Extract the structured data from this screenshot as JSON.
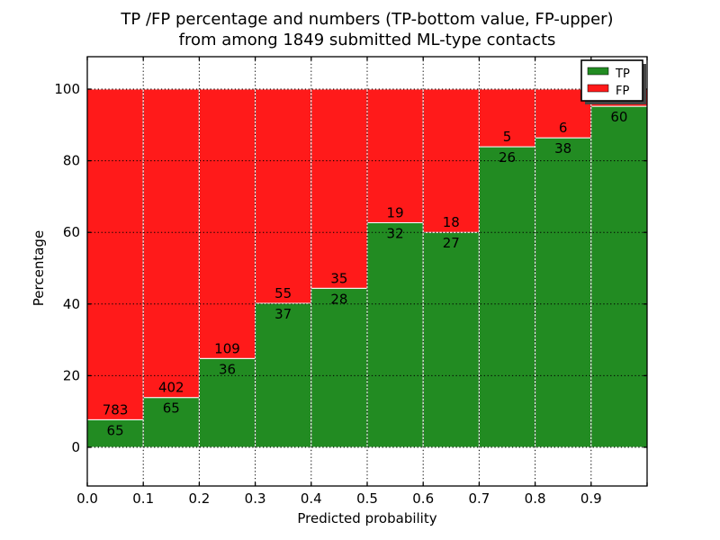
{
  "title": {
    "line1": "TP /FP percentage and numbers (TP-bottom value, FP-upper)",
    "line2": "from among 1849 submitted ML-type contacts"
  },
  "axes": {
    "xlabel": "Predicted probability",
    "ylabel": "Percentage",
    "xticks": [
      "0.0",
      "0.1",
      "0.2",
      "0.3",
      "0.4",
      "0.5",
      "0.6",
      "0.7",
      "0.8",
      "0.9"
    ],
    "yticks": [
      "0",
      "20",
      "40",
      "60",
      "80",
      "100"
    ],
    "ytick_values": [
      0,
      20,
      40,
      60,
      80,
      100
    ]
  },
  "legend": {
    "position": "upper-right",
    "items": [
      {
        "label": "TP",
        "color": "#228b22"
      },
      {
        "label": "FP",
        "color": "#ff1a1a"
      }
    ]
  },
  "colors": {
    "tp": "#228b22",
    "fp": "#ff1a1a",
    "grid": "#000000",
    "frame": "#000000",
    "background": "#ffffff",
    "bar_edge": "#ffffff",
    "legend_shadow": "#444444"
  },
  "chart_data": {
    "type": "bar",
    "subtype": "stacked-100pct-histogram",
    "title": "TP /FP percentage and numbers (TP-bottom value, FP-upper) from among 1849 submitted ML-type contacts",
    "xlabel": "Predicted probability",
    "ylabel": "Percentage",
    "xlim": [
      0.0,
      1.0
    ],
    "ylim": [
      -11,
      109
    ],
    "grid": "dotted",
    "legend_position": "upper right",
    "total_contacts": 1849,
    "bin_edges": [
      0.0,
      0.1,
      0.2,
      0.3,
      0.4,
      0.5,
      0.6,
      0.7,
      0.8,
      0.9,
      1.0
    ],
    "categories": [
      "0.0-0.1",
      "0.1-0.2",
      "0.2-0.3",
      "0.3-0.4",
      "0.4-0.5",
      "0.5-0.6",
      "0.6-0.7",
      "0.7-0.8",
      "0.8-0.9",
      "0.9-1.0"
    ],
    "series": [
      {
        "name": "TP",
        "color": "#228b22",
        "counts": [
          65,
          65,
          36,
          37,
          28,
          32,
          27,
          26,
          38,
          60
        ],
        "pct": [
          7.7,
          13.9,
          24.8,
          40.2,
          44.4,
          62.7,
          60.0,
          83.9,
          86.4,
          95.2
        ]
      },
      {
        "name": "FP",
        "color": "#ff1a1a",
        "counts": [
          783,
          402,
          109,
          55,
          35,
          19,
          18,
          5,
          6,
          null
        ],
        "pct": [
          92.3,
          86.1,
          75.2,
          59.8,
          55.6,
          37.3,
          40.0,
          16.1,
          13.6,
          4.8
        ],
        "note": "FP count label for the 0.9-1.0 bin is hidden behind the legend"
      }
    ]
  }
}
